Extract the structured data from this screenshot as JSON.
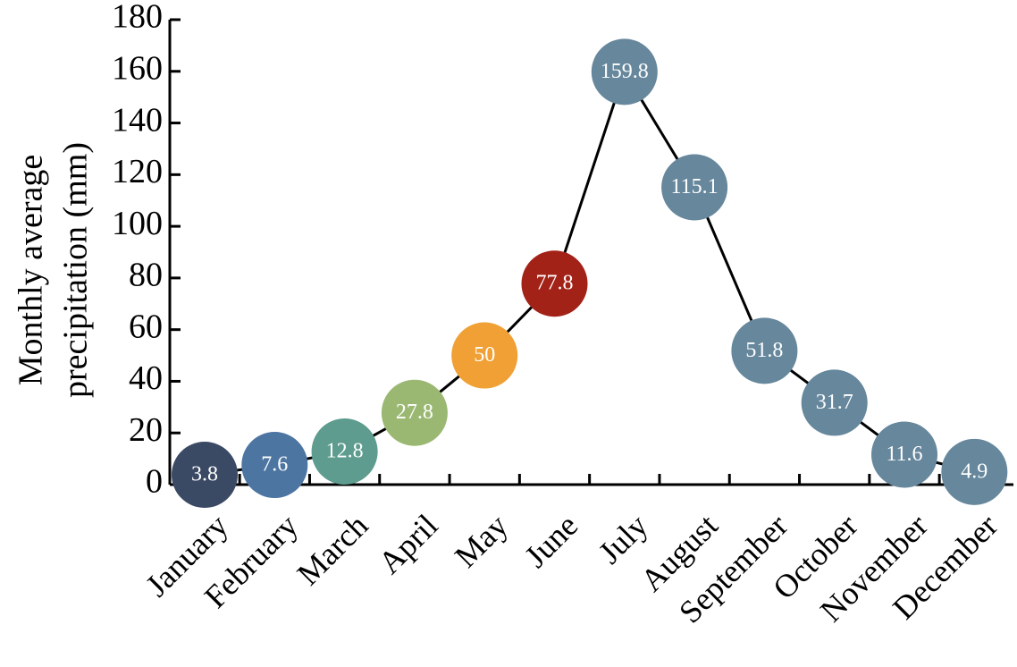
{
  "chart_data": {
    "type": "line",
    "title": "",
    "xlabel": "",
    "ylabel": [
      "Monthly average",
      "precipitation (mm)"
    ],
    "categories": [
      "January",
      "February",
      "March",
      "April",
      "May",
      "June",
      "July",
      "August",
      "September",
      "October",
      "November",
      "December"
    ],
    "values": [
      3.8,
      7.6,
      12.8,
      27.8,
      50,
      77.8,
      159.8,
      115.1,
      51.8,
      31.7,
      11.6,
      4.9
    ],
    "data_labels": [
      "3.8",
      "7.6",
      "12.8",
      "27.8",
      "50",
      "77.8",
      "159.8",
      "115.1",
      "51.8",
      "31.7",
      "11.6",
      "4.9"
    ],
    "point_colors": [
      "#3b4a64",
      "#4d75a2",
      "#5d9c8e",
      "#9ab872",
      "#f0a034",
      "#a32218",
      "#66879c",
      "#66879c",
      "#66879c",
      "#66879c",
      "#66879c",
      "#66879c"
    ],
    "ylim": [
      0,
      180
    ],
    "yticks": [
      0,
      20,
      40,
      60,
      80,
      100,
      120,
      140,
      160,
      180
    ],
    "grid": false,
    "legend": "none"
  }
}
